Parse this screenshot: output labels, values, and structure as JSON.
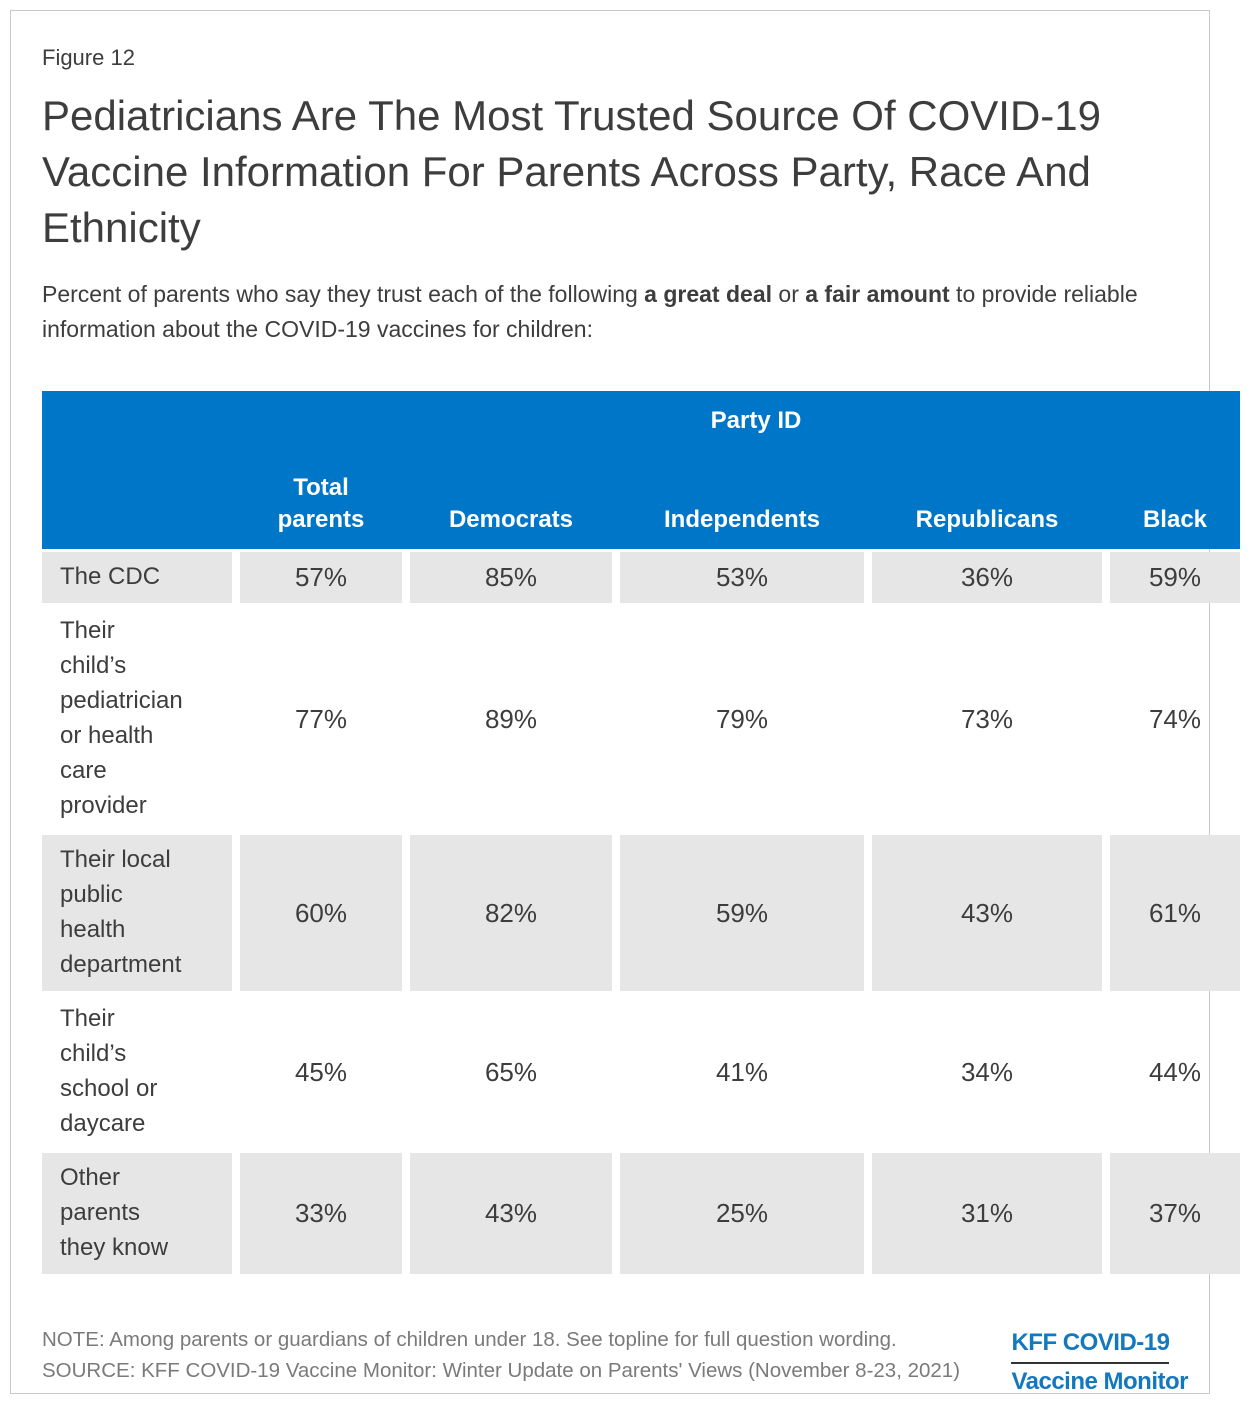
{
  "figure_label": "Figure 12",
  "subtitle_segments": {
    "part1": "Percent of parents who say they trust each of the following ",
    "bold1": "a great deal",
    "part2": " or ",
    "bold2": "a fair amount",
    "part3": " to provide reliable information about the COVID-19 vaccines for children:"
  },
  "chart_data": {
    "type": "table",
    "title": "Pediatricians Are The Most Trusted Source Of COVID-19 Vaccine Information For Parents Across Party, Race And Ethnicity",
    "subtitle": "Percent of parents who say they trust each of the following a great deal or a fair amount to provide reliable information about the COVID-19 vaccines for children:",
    "group_header": "Party ID",
    "group_header_spans": [
      "Democrats",
      "Independents",
      "Republicans"
    ],
    "columns": [
      {
        "label": "Total parents",
        "display": "Total\nparents"
      },
      {
        "label": "Democrats",
        "display": "Democrats"
      },
      {
        "label": "Independents",
        "display": "Independents"
      },
      {
        "label": "Republicans",
        "display": "Republicans"
      },
      {
        "label": "Black",
        "display": "Black",
        "clipped_at_right_edge": true
      }
    ],
    "rows": [
      {
        "label": "The CDC",
        "display": "The CDC",
        "values": [
          "57%",
          "85%",
          "53%",
          "36%",
          "59%"
        ]
      },
      {
        "label": "Their child’s pediatrician or health care provider",
        "display": "Their\nchild’s\npediatrician\nor health\ncare\nprovider",
        "values": [
          "77%",
          "89%",
          "79%",
          "73%",
          "74%"
        ]
      },
      {
        "label": "Their local public health department",
        "display": "Their local\npublic\nhealth\ndepartment",
        "values": [
          "60%",
          "82%",
          "59%",
          "43%",
          "61%"
        ]
      },
      {
        "label": "Their child’s school or daycare",
        "display": "Their\nchild’s\nschool or\ndaycare",
        "values": [
          "45%",
          "65%",
          "41%",
          "34%",
          "44%"
        ]
      },
      {
        "label": "Other parents they know",
        "display": "Other\nparents\nthey know",
        "values": [
          "33%",
          "43%",
          "25%",
          "31%",
          "37%"
        ]
      }
    ]
  },
  "footer": {
    "note": "NOTE: Among parents or guardians of children under 18. See topline for full question wording.",
    "source": "SOURCE: KFF COVID-19 Vaccine Monitor: Winter Update on Parents' Views (November 8-23, 2021)",
    "logo": {
      "line1": "KFF COVID-19",
      "line2": "Vaccine Monitor"
    }
  },
  "colors": {
    "header_blue": "#0076C8",
    "row_gray": "#E6E6E6",
    "text_dark": "#3D3D3D",
    "note_gray": "#7A7A7A",
    "logo_blue": "#1478BE",
    "page_border_gray": "#C9C9C9"
  }
}
